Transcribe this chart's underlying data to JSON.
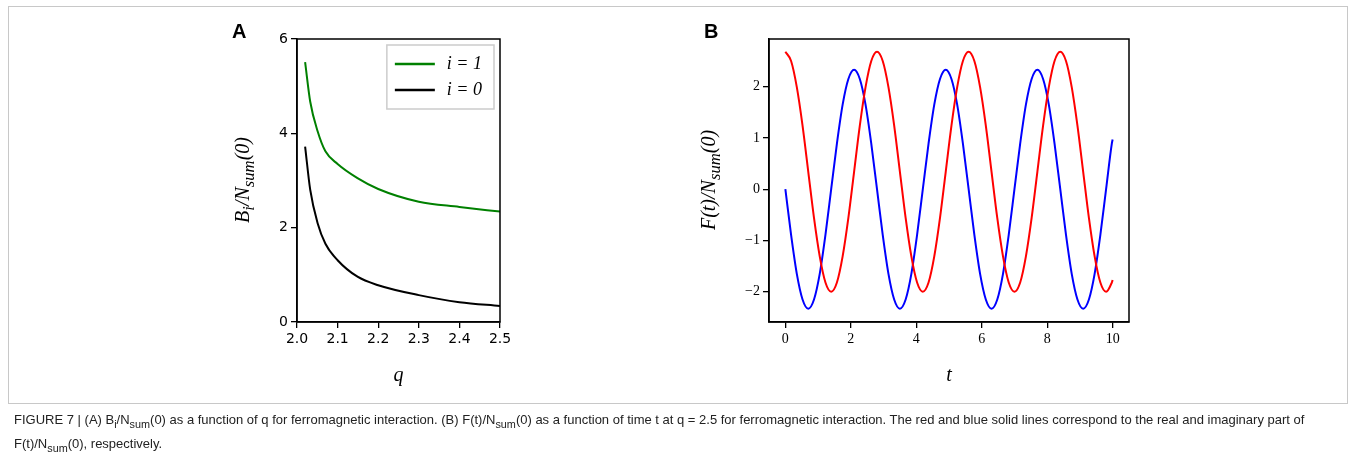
{
  "chart_data": [
    {
      "type": "line",
      "title": "A",
      "xlabel": "q",
      "ylabel": "B$_{i}$/N$_{sum}$(0)",
      "xlim": [
        2.0,
        2.5
      ],
      "ylim": [
        0,
        6
      ],
      "xticks": [
        {
          "value": 2.0,
          "label": "2.0"
        },
        {
          "value": 2.1,
          "label": "2.1"
        },
        {
          "value": 2.2,
          "label": "2.2"
        },
        {
          "value": 2.3,
          "label": "2.3"
        },
        {
          "value": 2.4,
          "label": "2.4"
        },
        {
          "value": 2.5,
          "label": "2.5"
        }
      ],
      "yticks": [
        0,
        2,
        4,
        6
      ],
      "grid": false,
      "legend": "top right",
      "marker": "none",
      "line_style": "solid",
      "x": [
        2.02,
        2.0326,
        2.051,
        2.07,
        2.1,
        2.149,
        2.2,
        2.3,
        2.4,
        2.5
      ],
      "series": [
        {
          "name": "i = 1",
          "color": "#008000",
          "values": [
            5.51,
            4.67,
            4.04,
            3.62,
            3.35,
            3.05,
            2.82,
            2.55,
            2.44,
            2.34
          ]
        },
        {
          "name": "i = 0",
          "color": "#000000",
          "values": [
            3.72,
            2.8,
            2.09,
            1.66,
            1.31,
            0.96,
            0.78,
            0.57,
            0.42,
            0.34
          ]
        }
      ]
    },
    {
      "type": "line",
      "title": "B",
      "xlabel": "t",
      "ylabel": "F(t)/N$_{sum}$(0)",
      "xlim": [
        -0.5,
        10.5
      ],
      "ylim": [
        -2.59,
        2.93
      ],
      "xticks": [
        0,
        2,
        4,
        6,
        8,
        10
      ],
      "yticks": [
        {
          "value": -2,
          "label": "−2"
        },
        {
          "value": -1,
          "label": "−1"
        },
        0,
        1,
        2
      ],
      "grid": false,
      "marker": "none",
      "line_style": "solid",
      "x": [
        0,
        0.175,
        0.35,
        0.525,
        0.7,
        0.875,
        1.05,
        1.225,
        1.4,
        1.575,
        1.75,
        1.925,
        2.1,
        2.275,
        2.45,
        2.625,
        2.8,
        2.975,
        3.15,
        3.325,
        3.5,
        3.675,
        3.85,
        4.025,
        4.2,
        4.375,
        4.55,
        4.725,
        4.9,
        5.075,
        5.25,
        5.425,
        5.6,
        5.775,
        5.95,
        6.125,
        6.3,
        6.475,
        6.65,
        6.825,
        7,
        7.175,
        7.35,
        7.525,
        7.7,
        7.875,
        8.05,
        8.225,
        8.4,
        8.575,
        8.75,
        8.925,
        9.1,
        9.275,
        9.45,
        9.625,
        9.8,
        9.975,
        10
      ],
      "series": [
        {
          "color": "#ff0000",
          "values": [
            2.68,
            2.5,
            1.99,
            1.24,
            0.34,
            -0.56,
            -1.31,
            -1.82,
            -2.0,
            -1.82,
            -1.31,
            -0.56,
            0.34,
            1.24,
            1.99,
            2.5,
            2.68,
            2.5,
            1.99,
            1.24,
            0.34,
            -0.56,
            -1.31,
            -1.82,
            -2.0,
            -1.82,
            -1.31,
            -0.56,
            0.34,
            1.24,
            1.99,
            2.5,
            2.68,
            2.5,
            1.99,
            1.24,
            0.34,
            -0.56,
            -1.31,
            -1.82,
            -2.0,
            -1.82,
            -1.31,
            -0.56,
            0.34,
            1.24,
            1.99,
            2.5,
            2.68,
            2.5,
            1.99,
            1.24,
            0.34,
            -0.56,
            -1.31,
            -1.82,
            -2.0,
            -1.82,
            -1.77
          ]
        },
        {
          "color": "#0000ff",
          "values": [
            0,
            -0.89,
            -1.65,
            -2.15,
            -2.33,
            -2.15,
            -1.65,
            -0.89,
            0,
            0.89,
            1.65,
            2.15,
            2.33,
            2.15,
            1.65,
            0.89,
            0,
            -0.89,
            -1.65,
            -2.15,
            -2.33,
            -2.15,
            -1.65,
            -0.89,
            0,
            0.89,
            1.65,
            2.15,
            2.33,
            2.15,
            1.65,
            0.89,
            0,
            -0.89,
            -1.65,
            -2.15,
            -2.33,
            -2.15,
            -1.65,
            -0.89,
            0,
            0.89,
            1.65,
            2.15,
            2.33,
            2.15,
            1.65,
            0.89,
            0,
            -0.89,
            -1.65,
            -2.15,
            -2.33,
            -2.15,
            -1.65,
            -0.89,
            0,
            0.89,
            0.97
          ]
        }
      ],
      "annotations": [
        "FIGURE 7 | (A) B$_{i}$/N$_{sum}$(0) as a function of q for ferromagnetic interaction. (B) F(t)/N$_{sum}$(0) as a function of time t at q = 2.5 for ferromagnetic interaction. The red and blue solid lines correspond to the real and imaginary part of F(t)/N$_{sum}$(0), respectively."
      ]
    }
  ]
}
